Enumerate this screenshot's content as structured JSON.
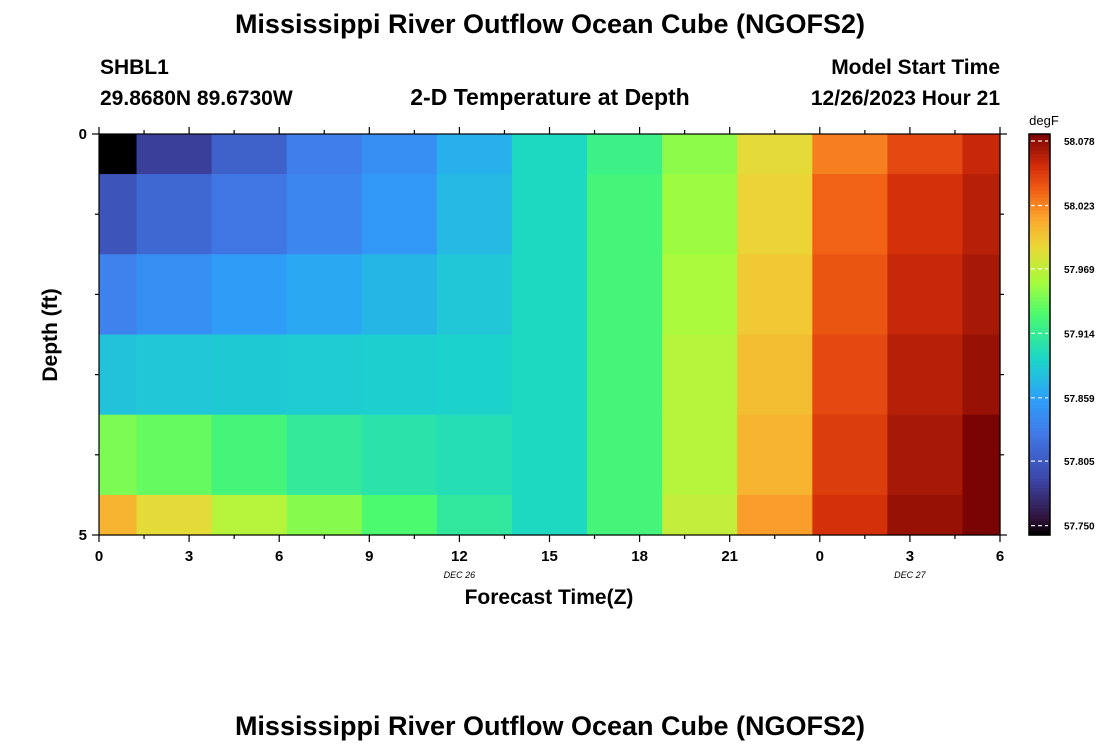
{
  "page": {
    "title_top": "Mississippi River Outflow Ocean Cube (NGOFS2)",
    "title_bottom": "Mississippi River Outflow Ocean Cube (NGOFS2)",
    "station_id": "SHBL1",
    "station_coords": "29.8680N  89.6730W",
    "plot_title": "2-D Temperature at Depth",
    "model_start_label": "Model Start Time",
    "model_start_value": "12/26/2023 Hour 21"
  },
  "chart_data": {
    "type": "heatmap",
    "title": "2-D Temperature at Depth",
    "xlabel": "Forecast Time(Z)",
    "ylabel": "Depth (ft)",
    "x_ticks": [
      "0",
      "3",
      "6",
      "9",
      "12",
      "15",
      "18",
      "21",
      "0",
      "3",
      "6"
    ],
    "x_tick_values": [
      0,
      3,
      6,
      9,
      12,
      15,
      18,
      21,
      24,
      27,
      30
    ],
    "x_minor_ticks": [
      1.5,
      4.5,
      7.5,
      10.5,
      13.5,
      16.5,
      19.5,
      22.5,
      25.5,
      28.5
    ],
    "date_labels": [
      {
        "text": "DEC 26",
        "x": 12
      },
      {
        "text": "DEC 27",
        "x": 27
      }
    ],
    "xlim": [
      0,
      30
    ],
    "y_ticks": [
      "0",
      "5"
    ],
    "y_tick_values": [
      0,
      5
    ],
    "y_minor_ticks": [
      1,
      2,
      3,
      4
    ],
    "ylim": [
      0,
      5
    ],
    "time_bins": [
      0,
      1.25,
      3.75,
      6.25,
      8.75,
      11.25,
      13.75,
      16.25,
      18.75,
      21.25,
      23.75,
      26.25,
      28.75,
      30
    ],
    "depth_bins": [
      0,
      0.5,
      1.5,
      2.5,
      3.5,
      4.5,
      5
    ],
    "values": [
      [
        57.742,
        57.785,
        57.81,
        57.832,
        57.845,
        57.868,
        57.895,
        57.92,
        57.95,
        57.985,
        58.025,
        58.045,
        58.06
      ],
      [
        57.8,
        57.815,
        57.826,
        57.838,
        57.852,
        57.874,
        57.895,
        57.925,
        57.955,
        57.99,
        58.035,
        58.055,
        58.065
      ],
      [
        57.835,
        57.846,
        57.855,
        57.864,
        57.872,
        57.882,
        57.895,
        57.925,
        57.96,
        57.995,
        58.04,
        58.06,
        58.07
      ],
      [
        57.88,
        57.882,
        57.884,
        57.886,
        57.888,
        57.89,
        57.895,
        57.925,
        57.965,
        58.0,
        58.045,
        58.065,
        58.075
      ],
      [
        57.945,
        57.938,
        57.925,
        57.912,
        57.905,
        57.9,
        57.895,
        57.925,
        57.965,
        58.005,
        58.05,
        58.07,
        58.085
      ],
      [
        58.005,
        57.985,
        57.965,
        57.948,
        57.93,
        57.91,
        57.895,
        57.925,
        57.97,
        58.015,
        58.055,
        58.075,
        58.095
      ]
    ],
    "colorbar": {
      "label": "degF",
      "min": 57.742,
      "max": 58.084,
      "tick_values": [
        57.75,
        57.805,
        57.859,
        57.914,
        57.969,
        58.023,
        58.078
      ],
      "tick_labels": [
        "57.750",
        "57.805",
        "57.859",
        "57.914",
        "57.969",
        "58.023",
        "58.078"
      ]
    }
  }
}
